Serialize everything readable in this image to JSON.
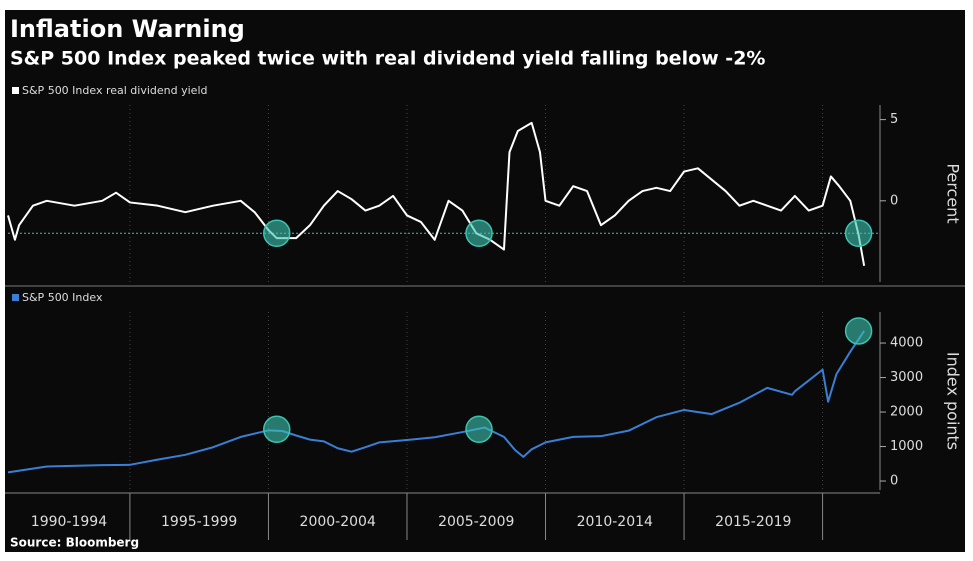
{
  "title": "Inflation Warning",
  "subtitle": "S&P 500 Index peaked twice with real dividend yield falling below -2%",
  "source": "Source: Bloomberg",
  "chart_data": [
    {
      "type": "line",
      "y_label": "Percent",
      "xlim": [
        1990.6,
        2022
      ],
      "xticks": [
        1995,
        2000,
        2005,
        2010,
        2015,
        2020
      ],
      "ylim": [
        -5,
        5.9
      ],
      "yticks": [
        5,
        0
      ],
      "ref_line": -2,
      "ref_color": "#3cc3b0",
      "series": [
        {
          "name": "S&P 500 Index real dividend yield",
          "color": "#ffffff",
          "x": [
            1990.6,
            1990.85,
            1991,
            1991.5,
            1992,
            1993,
            1994,
            1994.5,
            1995,
            1996,
            1997,
            1998,
            1999,
            1999.5,
            2000,
            2000.3,
            2001,
            2001.5,
            2002,
            2002.5,
            2003,
            2003.5,
            2004,
            2004.5,
            2005,
            2005.5,
            2006,
            2006.5,
            2007,
            2007.5,
            2008,
            2008.5,
            2008.7,
            2009,
            2009.5,
            2009.8,
            2010,
            2010.5,
            2011,
            2011.5,
            2012,
            2012.5,
            2013,
            2013.5,
            2014,
            2014.5,
            2015,
            2015.5,
            2016,
            2016.5,
            2017,
            2017.5,
            2018,
            2018.5,
            2019,
            2019.5,
            2020,
            2020.3,
            2020.6,
            2021,
            2021.3,
            2021.5
          ],
          "values": [
            -0.9,
            -2.4,
            -1.5,
            -0.3,
            0,
            -0.3,
            0,
            0.5,
            -0.1,
            -0.3,
            -0.7,
            -0.3,
            0,
            -0.7,
            -1.8,
            -2.3,
            -2.3,
            -1.5,
            -0.3,
            0.6,
            0.1,
            -0.6,
            -0.3,
            0.3,
            -0.9,
            -1.3,
            -2.4,
            0,
            -0.6,
            -2.0,
            -2.4,
            -3.0,
            3.0,
            4.3,
            4.8,
            3.0,
            0,
            -0.3,
            0.9,
            0.6,
            -1.5,
            -0.9,
            0,
            0.6,
            0.8,
            0.6,
            1.8,
            2.0,
            1.3,
            0.6,
            -0.3,
            0,
            -0.3,
            -0.6,
            0.3,
            -0.6,
            -0.3,
            1.5,
            0.9,
            0,
            -2.1,
            -4.0
          ]
        }
      ],
      "markers": {
        "color": "#3cc3b0",
        "x": [
          2000.3,
          2007.6,
          2021.3
        ],
        "y": [
          -2,
          -2,
          -2
        ]
      }
    },
    {
      "type": "line",
      "y_label": "Index points",
      "xlim": [
        1990.6,
        2022
      ],
      "xticks": [
        1995,
        2000,
        2005,
        2010,
        2015,
        2020
      ],
      "period_labels": [
        "1990-1994",
        "1995-1999",
        "2000-2004",
        "2005-2009",
        "2010-2014",
        "2015-2019"
      ],
      "ylim": [
        -260,
        4900
      ],
      "yticks": [
        4000,
        3000,
        2000,
        1000,
        0
      ],
      "series": [
        {
          "name": "S&P 500 Index",
          "color": "#3a7fd5",
          "x": [
            1990.6,
            1992,
            1994,
            1995,
            1996,
            1997,
            1998,
            1999,
            2000,
            2000.5,
            2001,
            2001.5,
            2002,
            2002.5,
            2003,
            2003.5,
            2004,
            2005,
            2006,
            2007,
            2007.8,
            2008.5,
            2008.9,
            2009.2,
            2009.5,
            2010,
            2011,
            2012,
            2013,
            2014,
            2015,
            2016,
            2017,
            2018,
            2018.9,
            2019,
            2020,
            2020.2,
            2020.5,
            2021,
            2021.5
          ],
          "values": [
            250,
            420,
            460,
            470,
            620,
            760,
            980,
            1280,
            1470,
            1450,
            1320,
            1200,
            1150,
            950,
            850,
            980,
            1120,
            1190,
            1270,
            1420,
            1550,
            1280,
            900,
            700,
            920,
            1120,
            1280,
            1300,
            1460,
            1850,
            2060,
            1940,
            2270,
            2700,
            2500,
            2600,
            3230,
            2300,
            3100,
            3750,
            4350
          ]
        }
      ],
      "markers": {
        "color": "#3cc3b0",
        "x": [
          2000.3,
          2007.6,
          2021.3
        ],
        "y": [
          1500,
          1500,
          4350
        ]
      }
    }
  ]
}
